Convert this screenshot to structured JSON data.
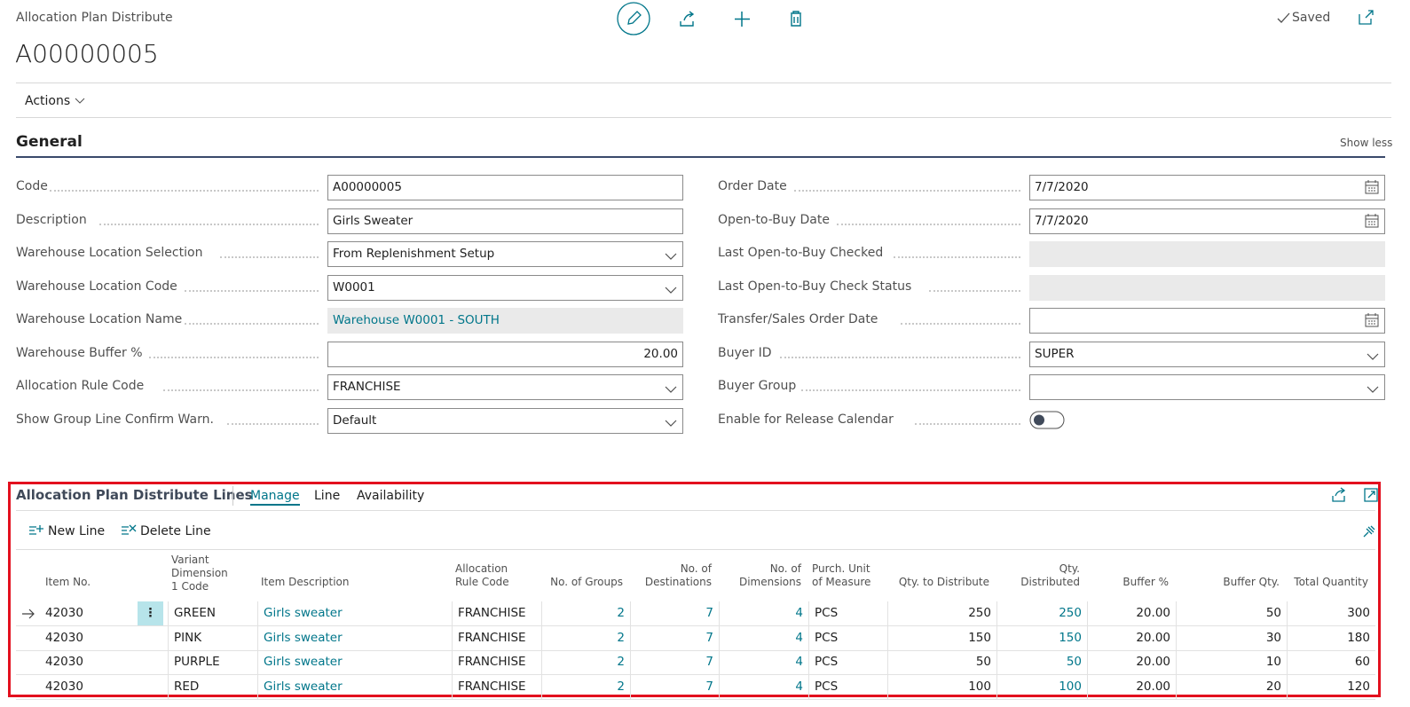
{
  "header": {
    "page_caption": "Allocation Plan Distribute",
    "record_no": "A00000005",
    "saved": "Saved",
    "actions": "Actions"
  },
  "general": {
    "title": "General",
    "show_less": "Show less",
    "left_fields": [
      {
        "label": "Code",
        "value": "A00000005"
      },
      {
        "label": "Description",
        "value": "Girls  Sweater"
      },
      {
        "label": "Warehouse Location Selection",
        "value": "From Replenishment Setup"
      },
      {
        "label": "Warehouse Location Code",
        "value": "W0001"
      },
      {
        "label": "Warehouse Location Name",
        "value": "Warehouse W0001 - SOUTH"
      },
      {
        "label": "Warehouse Buffer %",
        "value": "20.00"
      },
      {
        "label": "Allocation Rule Code",
        "value": "FRANCHISE"
      },
      {
        "label": "Show Group Line Confirm Warn.",
        "value": "Default"
      }
    ],
    "right_fields": [
      {
        "label": "Order Date",
        "value": "7/7/2020"
      },
      {
        "label": "Open-to-Buy Date",
        "value": "7/7/2020"
      },
      {
        "label": "Last Open-to-Buy Checked"
      },
      {
        "label": "Last Open-to-Buy Check Status"
      },
      {
        "label": "Transfer/Sales Order Date"
      },
      {
        "label": "Buyer ID",
        "value": "SUPER"
      },
      {
        "label": "Buyer Group"
      },
      {
        "label": "Enable for Release Calendar"
      }
    ]
  },
  "lines": {
    "title": "Allocation Plan Distribute Lines",
    "tabs": [
      "Manage",
      "Line",
      "Availability"
    ],
    "buttons": [
      "New Line",
      "Delete Line"
    ],
    "columns": [
      "Item No.",
      "Variant Dimension 1 Code",
      "Item Description",
      "Allocation Rule Code",
      "No. of Groups",
      "No. of Destinations",
      "No. of Dimensions",
      "Purch. Unit of Measure",
      "Qty. to Distribute",
      "Qty. Distributed",
      "Buffer %",
      "Buffer Qty.",
      "Total Quantity"
    ],
    "rows": [
      [
        "42030",
        "GREEN",
        "Girls sweater",
        "FRANCHISE",
        "2",
        "7",
        "4",
        "PCS",
        "250",
        "250",
        "20.00",
        "50",
        "300"
      ],
      [
        "42030",
        "PINK",
        "Girls sweater",
        "FRANCHISE",
        "2",
        "7",
        "4",
        "PCS",
        "150",
        "150",
        "20.00",
        "30",
        "180"
      ],
      [
        "42030",
        "PURPLE",
        "Girls sweater",
        "FRANCHISE",
        "2",
        "7",
        "4",
        "PCS",
        "50",
        "50",
        "20.00",
        "10",
        "60"
      ],
      [
        "42030",
        "RED",
        "Girls sweater",
        "FRANCHISE",
        "2",
        "7",
        "4",
        "PCS",
        "100",
        "100",
        "20.00",
        "20",
        "120"
      ]
    ]
  }
}
